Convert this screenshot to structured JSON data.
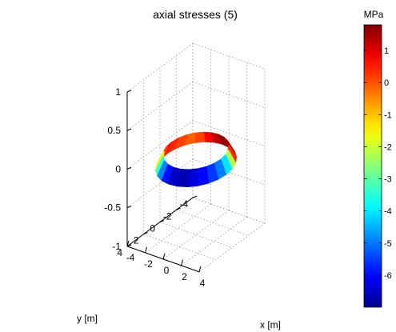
{
  "chart_data": {
    "type": "3d-ring",
    "title": "axial stresses (5)",
    "xlabel": "x [m]",
    "ylabel": "y [m]",
    "zlabel": "",
    "xlim": [
      -4,
      4
    ],
    "ylim": [
      -4,
      4
    ],
    "zlim": [
      -1,
      1
    ],
    "x_ticks": [
      "-4",
      "-2",
      "0",
      "2",
      "4"
    ],
    "y_ticks": [
      "-4",
      "-2",
      "0",
      "2",
      "4"
    ],
    "z_ticks": [
      "-1",
      "-0.5",
      "0",
      "0.5",
      "1"
    ],
    "grid": true,
    "ring": {
      "radius": 3,
      "angles_deg": [
        0,
        15,
        30,
        45,
        60,
        75,
        90,
        105,
        120,
        135,
        150,
        165,
        180,
        195,
        210,
        225,
        240,
        255,
        270,
        285,
        300,
        315,
        330,
        345
      ],
      "stress_mpa": [
        -4.6,
        -5.3,
        -5.8,
        -6.2,
        -6.5,
        -6.8,
        -6.3,
        -5.5,
        -4.2,
        -2.5,
        -0.5,
        0.6,
        0.5,
        0.3,
        0.0,
        -0.2,
        0.5,
        1.0,
        1.5,
        1.8,
        1.2,
        1.8,
        -1.0,
        -3.5
      ]
    },
    "colorbar": {
      "label": "MPa",
      "range": [
        -7,
        1.8
      ],
      "ticks": [
        "1",
        "0",
        "-1",
        "-2",
        "-3",
        "-4",
        "-5",
        "-6"
      ],
      "colormap": "jet",
      "stops": [
        "#00008f",
        "#0000ff",
        "#00ffff",
        "#ffff00",
        "#ff0000",
        "#800000"
      ]
    }
  }
}
